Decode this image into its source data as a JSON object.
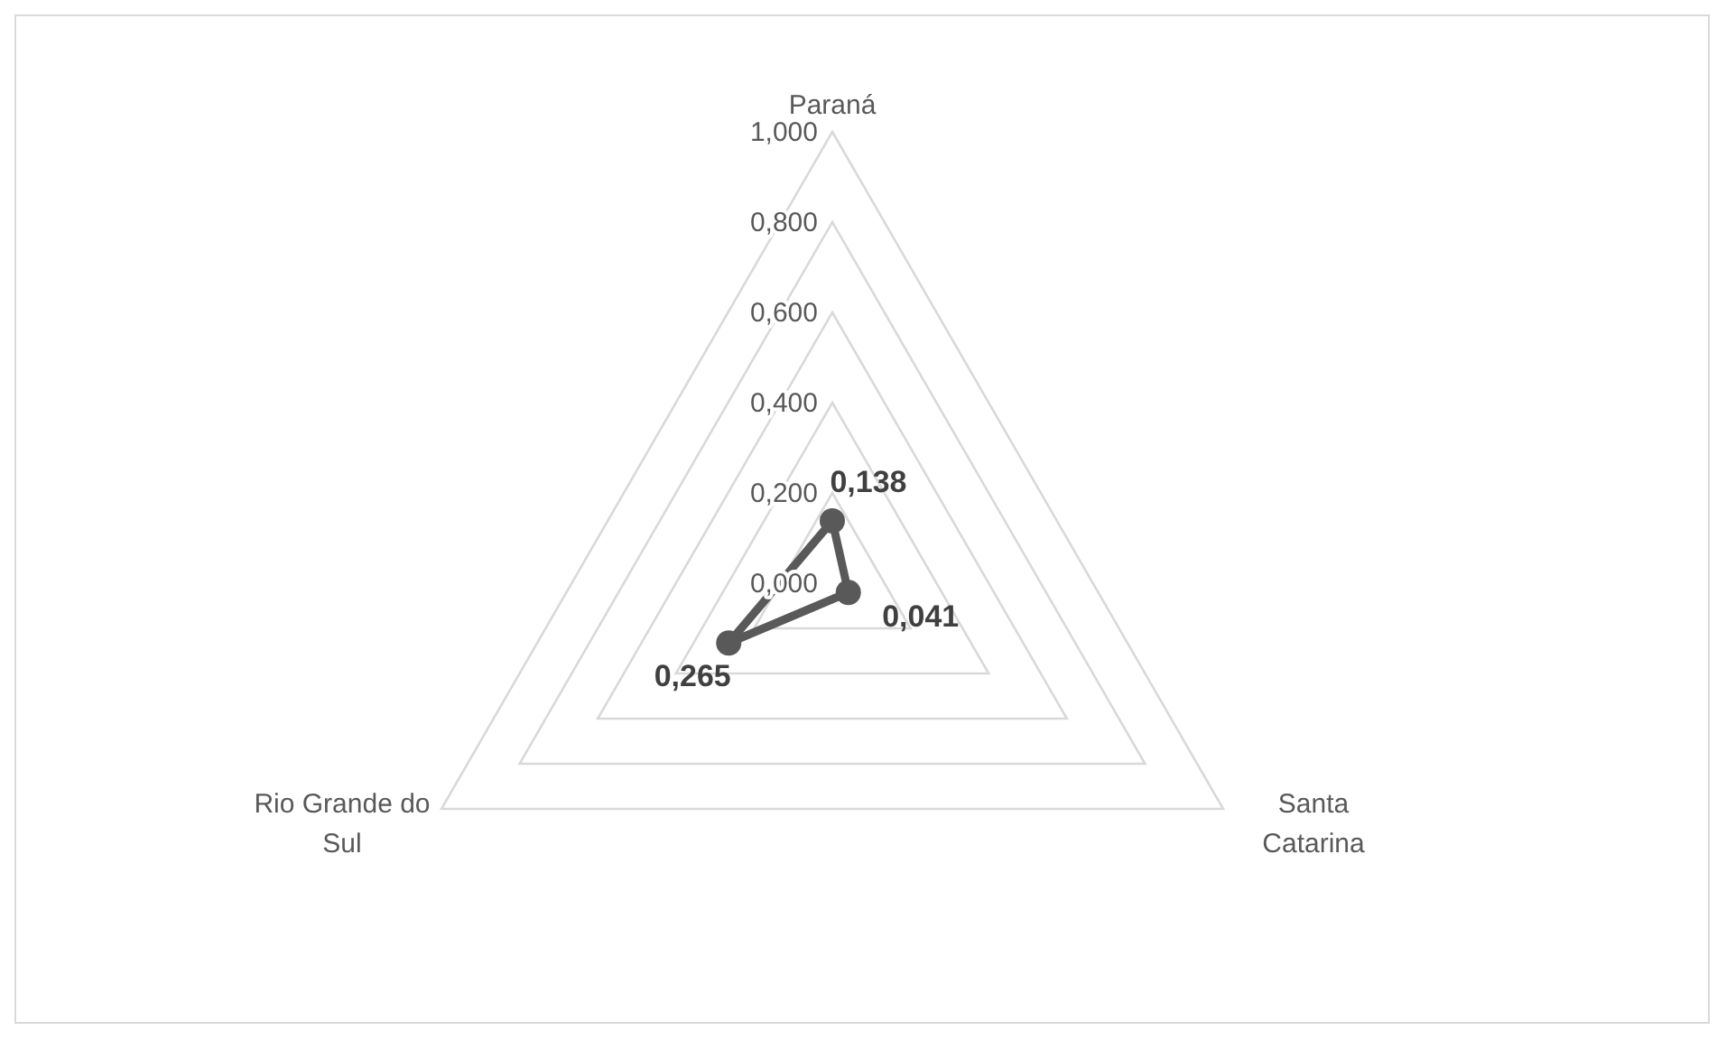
{
  "chart_data": {
    "type": "radar",
    "categories": [
      "Paraná",
      "Santa Catarina",
      "Rio Grande do Sul"
    ],
    "series": [
      {
        "color": "#595959",
        "values": [
          0.138,
          0.041,
          0.265
        ],
        "value_labels": [
          "0,138",
          "0,041",
          "0,265"
        ]
      }
    ],
    "ylim": [
      0,
      1
    ],
    "yticks": [
      {
        "value": 0,
        "label": "0,000"
      },
      {
        "value": 0.2,
        "label": "0,200"
      },
      {
        "value": 0.4,
        "label": "0,400"
      },
      {
        "value": 0.6,
        "label": "0,600"
      },
      {
        "value": 0.8,
        "label": "0,800"
      },
      {
        "value": 1,
        "label": "1,000"
      }
    ],
    "marker": "circle",
    "grid": true
  }
}
